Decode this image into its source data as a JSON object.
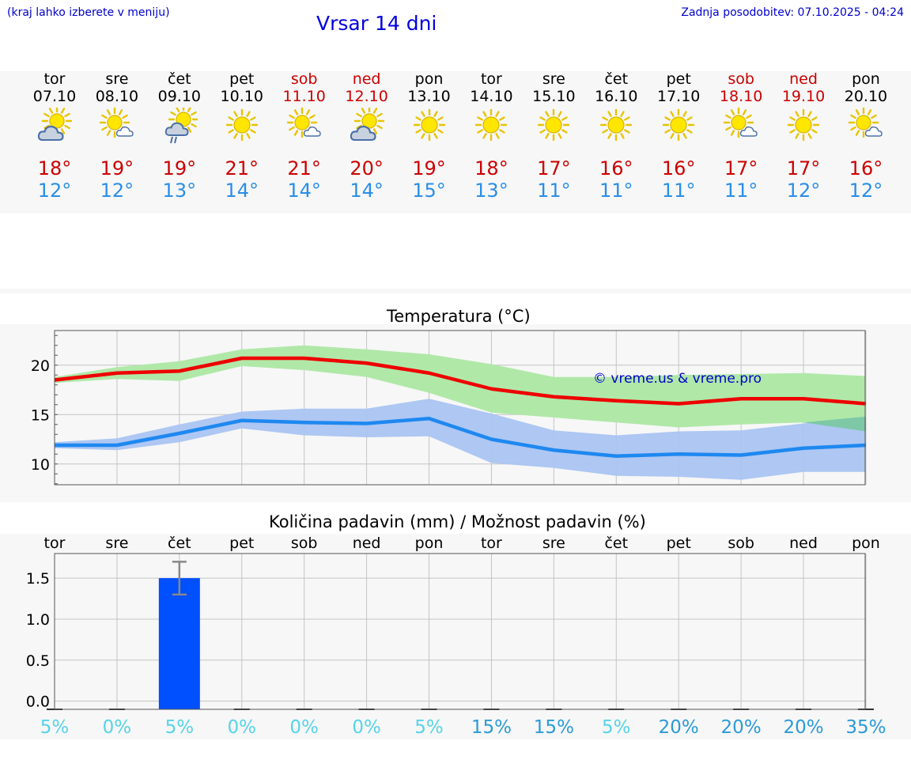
{
  "header": {
    "location_hint": "(kraj lahko izberete v meniju)",
    "title": "Vrsar 14 dni",
    "last_update": "Zadnja posodobitev: 07.10.2025 - 04:24"
  },
  "days": [
    {
      "name": "tor",
      "date": "07.10",
      "weekend": false,
      "icon": "partly-cloudy-icon",
      "tmax": "18°",
      "tmin": "12°"
    },
    {
      "name": "sre",
      "date": "08.10",
      "weekend": false,
      "icon": "sun-small-cloud-icon",
      "tmax": "19°",
      "tmin": "12°"
    },
    {
      "name": "čet",
      "date": "09.10",
      "weekend": false,
      "icon": "sun-cloud-rain-icon",
      "tmax": "19°",
      "tmin": "13°"
    },
    {
      "name": "pet",
      "date": "10.10",
      "weekend": false,
      "icon": "sun-icon",
      "tmax": "21°",
      "tmin": "14°"
    },
    {
      "name": "sob",
      "date": "11.10",
      "weekend": true,
      "icon": "sun-small-cloud-icon",
      "tmax": "21°",
      "tmin": "14°"
    },
    {
      "name": "ned",
      "date": "12.10",
      "weekend": true,
      "icon": "partly-cloudy-icon",
      "tmax": "20°",
      "tmin": "14°"
    },
    {
      "name": "pon",
      "date": "13.10",
      "weekend": false,
      "icon": "sun-icon",
      "tmax": "19°",
      "tmin": "15°"
    },
    {
      "name": "tor",
      "date": "14.10",
      "weekend": false,
      "icon": "sun-icon",
      "tmax": "18°",
      "tmin": "13°"
    },
    {
      "name": "sre",
      "date": "15.10",
      "weekend": false,
      "icon": "sun-icon",
      "tmax": "17°",
      "tmin": "11°"
    },
    {
      "name": "čet",
      "date": "16.10",
      "weekend": false,
      "icon": "sun-icon",
      "tmax": "16°",
      "tmin": "11°"
    },
    {
      "name": "pet",
      "date": "17.10",
      "weekend": false,
      "icon": "sun-icon",
      "tmax": "16°",
      "tmin": "11°"
    },
    {
      "name": "sob",
      "date": "18.10",
      "weekend": true,
      "icon": "sun-small-cloud-icon",
      "tmax": "17°",
      "tmin": "11°"
    },
    {
      "name": "ned",
      "date": "19.10",
      "weekend": true,
      "icon": "sun-icon",
      "tmax": "17°",
      "tmin": "12°"
    },
    {
      "name": "pon",
      "date": "20.10",
      "weekend": false,
      "icon": "sun-small-cloud-icon",
      "tmax": "16°",
      "tmin": "12°"
    }
  ],
  "colors": {
    "max_line": "#ee0000",
    "max_band": "#b0e8a8",
    "min_line": "#1e88f0",
    "min_band": "#aac4f2",
    "overlap_band": "#7ec8a8",
    "bar": "#0050ff",
    "error_bar": "#888888",
    "pct_low": "#55d4e8",
    "pct_high": "#2a9ad8",
    "watermark": "#0000cc"
  },
  "chart_data": [
    {
      "type": "line",
      "title": "Temperatura (°C)",
      "watermark": "© vreme.us & vreme.pro",
      "x": [
        0,
        1,
        2,
        3,
        4,
        5,
        6,
        7,
        8,
        9,
        10,
        11,
        12,
        13
      ],
      "ylim": [
        7.9,
        23.5
      ],
      "yticks": [
        10,
        15,
        20
      ],
      "ytick_labels": [
        "10",
        "15",
        "20"
      ],
      "grid": true,
      "series": [
        {
          "name": "max",
          "values": [
            18.5,
            19.2,
            19.4,
            20.7,
            20.7,
            20.2,
            19.2,
            17.6,
            16.8,
            16.4,
            16.1,
            16.6,
            16.6,
            16.1
          ],
          "band_low": [
            18.2,
            18.6,
            18.4,
            19.9,
            19.5,
            18.8,
            17.2,
            15.2,
            14.7,
            14.2,
            13.7,
            14.0,
            14.2,
            13.3
          ],
          "band_high": [
            18.8,
            19.8,
            20.4,
            21.6,
            22.0,
            21.6,
            21.1,
            20.1,
            18.8,
            18.8,
            19.0,
            19.1,
            19.2,
            18.9
          ]
        },
        {
          "name": "min",
          "values": [
            11.9,
            11.9,
            13.1,
            14.4,
            14.2,
            14.1,
            14.6,
            12.5,
            11.4,
            10.8,
            11.0,
            10.9,
            11.6,
            11.9
          ],
          "band_low": [
            11.6,
            11.4,
            12.2,
            13.6,
            12.9,
            12.7,
            12.8,
            10.1,
            9.6,
            8.8,
            8.7,
            8.4,
            9.2,
            9.2
          ],
          "band_high": [
            12.2,
            12.6,
            14.0,
            15.3,
            15.6,
            15.6,
            16.6,
            15.1,
            13.4,
            12.9,
            13.3,
            13.4,
            14.1,
            14.8
          ]
        }
      ]
    },
    {
      "type": "bar",
      "title": "Količina padavin (mm) / Možnost padavin (%)",
      "categories": [
        "tor",
        "sre",
        "čet",
        "pet",
        "sob",
        "ned",
        "pon",
        "tor",
        "sre",
        "čet",
        "pet",
        "sob",
        "ned",
        "pon"
      ],
      "values": [
        0,
        0,
        1.5,
        0,
        0,
        0,
        0,
        0,
        0,
        0,
        0,
        0,
        0,
        0
      ],
      "error_high": [
        0,
        0,
        1.7,
        0,
        0,
        0,
        0,
        0,
        0,
        0,
        0,
        0,
        0,
        0
      ],
      "error_low": [
        0,
        0,
        1.3,
        0,
        0,
        0,
        0,
        0,
        0,
        0,
        0,
        0,
        0,
        0
      ],
      "ylim": [
        -0.1,
        1.8
      ],
      "yticks": [
        0.0,
        0.5,
        1.0,
        1.5
      ],
      "ytick_labels": [
        "0.0",
        "0.5",
        "1.0",
        "1.5"
      ],
      "probability_values": [
        5,
        0,
        5,
        0,
        0,
        0,
        5,
        15,
        15,
        5,
        20,
        20,
        20,
        35
      ],
      "probability_labels": [
        "5%",
        "0%",
        "5%",
        "0%",
        "0%",
        "0%",
        "5%",
        "15%",
        "15%",
        "5%",
        "20%",
        "20%",
        "20%",
        "35%"
      ],
      "grid": true
    }
  ]
}
